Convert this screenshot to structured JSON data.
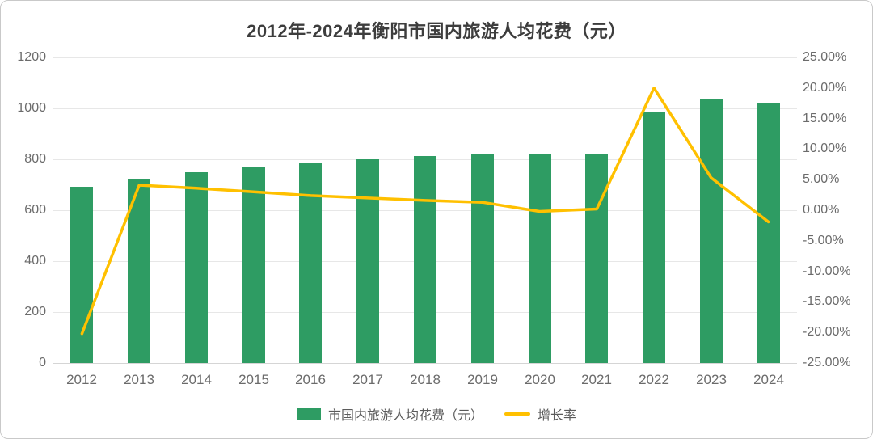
{
  "chart_data": {
    "type": "bar+line combo",
    "title": "2012年-2024年衡阳市国内旅游人均花费（元）",
    "categories": [
      "2012",
      "2013",
      "2014",
      "2015",
      "2016",
      "2017",
      "2018",
      "2019",
      "2020",
      "2021",
      "2022",
      "2023",
      "2024"
    ],
    "series": [
      {
        "name": "市国内旅游人均花费（元）",
        "type": "bar",
        "yaxis": "left",
        "unit": "元",
        "values": [
          692,
          724,
          748,
          767,
          786,
          799,
          813,
          823,
          821,
          822,
          987,
          1038,
          1019
        ]
      },
      {
        "name": "增长率",
        "type": "line",
        "yaxis": "right",
        "unit": "%",
        "values": [
          -20.2,
          4.1,
          3.6,
          3.0,
          2.4,
          2.0,
          1.6,
          1.3,
          -0.2,
          0.2,
          20.0,
          5.3,
          -1.9
        ]
      }
    ],
    "left_axis": {
      "min": 0,
      "max": 1200,
      "tick_step": 200,
      "tick_values": [
        0,
        200,
        400,
        600,
        800,
        1000,
        1200
      ],
      "tick_labels": [
        "0",
        "200",
        "400",
        "600",
        "800",
        "1000",
        "1200"
      ]
    },
    "right_axis": {
      "min": -25,
      "max": 25,
      "tick_step": 5,
      "tick_values": [
        25,
        20,
        15,
        10,
        5,
        0,
        -5,
        -10,
        -15,
        -20,
        -25
      ],
      "tick_labels": [
        "25.00%",
        "20.00%",
        "15.00%",
        "10.00%",
        "5.00%",
        "0.00%",
        "-5.00%",
        "-10.00%",
        "-15.00%",
        "-20.00%",
        "-25.00%"
      ]
    },
    "grid": "horizontal",
    "legend_position": "bottom"
  },
  "colors": {
    "bar": "#2E9C63",
    "line": "#FFC000",
    "grid": "#E7E7E7",
    "axis": "#D5D5D5",
    "tick_text": "#6B6B6B",
    "title_text": "#3D3D3D"
  }
}
